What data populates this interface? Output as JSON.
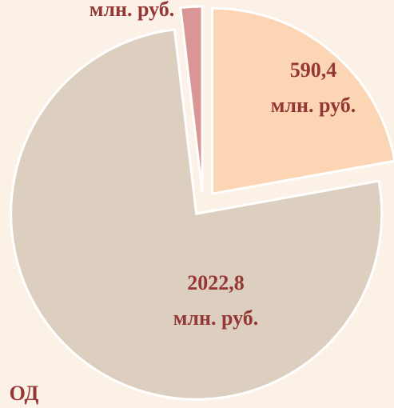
{
  "chart_data": {
    "type": "pie",
    "values": [
      590.4,
      2022.8,
      50
    ],
    "value_labels": [
      "590,4",
      "2022,8",
      null
    ],
    "unit_label": "млн. руб.",
    "colors": [
      "#fcd5b4",
      "#ddcfbf",
      "#d99694"
    ],
    "annotation": "ОД"
  }
}
